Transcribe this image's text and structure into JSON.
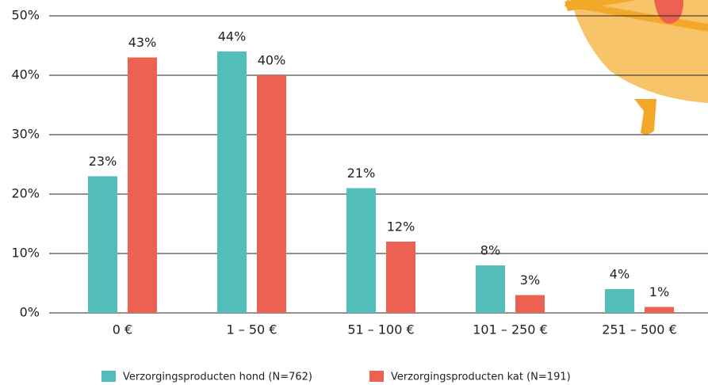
{
  "chart_data": {
    "type": "bar",
    "categories": [
      "0 €",
      "1 – 50 €",
      "51 – 100 €",
      "101 – 250 €",
      "251 – 500 €"
    ],
    "series": [
      {
        "name": "Verzorgingsproducten hond (N=762)",
        "color": "#52bdb9",
        "values": [
          23,
          44,
          21,
          8,
          4
        ],
        "value_labels": [
          "23%",
          "44%",
          "21%",
          "8%",
          "4%"
        ]
      },
      {
        "name": "Verzorgingsproducten kat (N=191)",
        "color": "#ec6152",
        "values": [
          43,
          40,
          12,
          3,
          1
        ],
        "value_labels": [
          "43%",
          "40%",
          "12%",
          "3%",
          "1%"
        ]
      }
    ],
    "ylim": [
      0,
      50
    ],
    "yticks": [
      {
        "value": 0,
        "label": "0%"
      },
      {
        "value": 10,
        "label": "10%"
      },
      {
        "value": 20,
        "label": "20%"
      },
      {
        "value": 30,
        "label": "30%"
      },
      {
        "value": 40,
        "label": "40%"
      },
      {
        "value": 50,
        "label": "50%"
      }
    ],
    "grid": true
  }
}
